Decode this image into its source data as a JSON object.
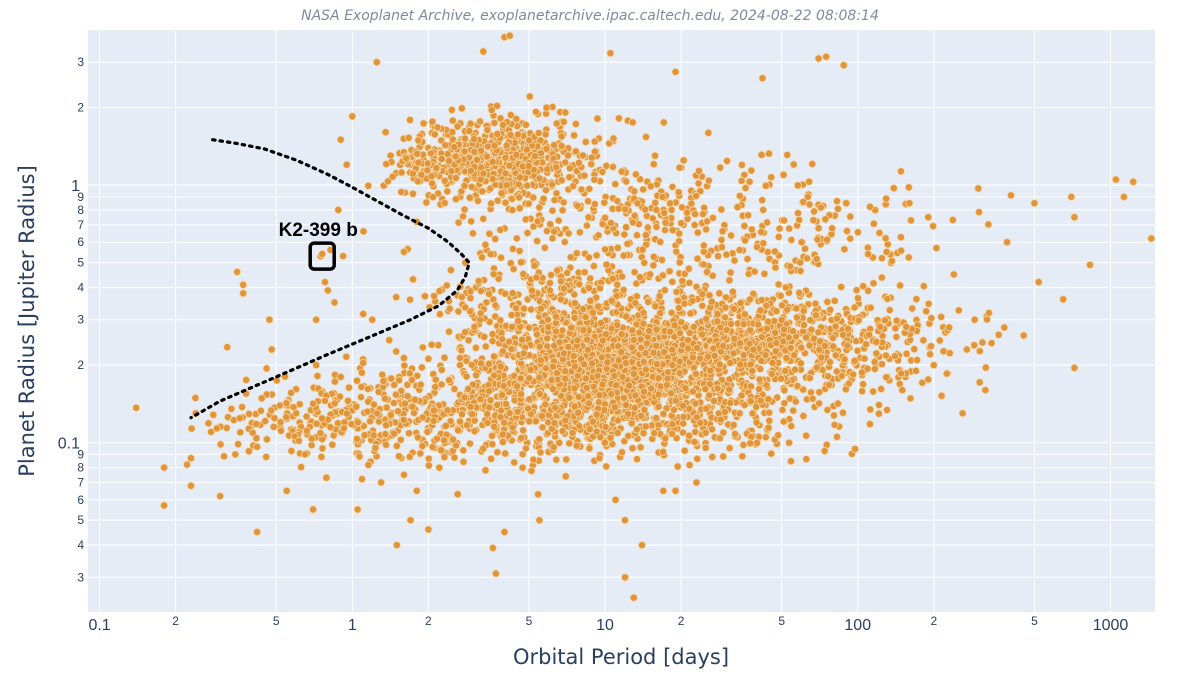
{
  "chart_data": {
    "type": "scatter",
    "title": "NASA Exoplanet Archive, exoplanetarchive.ipac.caltech.edu, 2024-08-22 08:08:14",
    "xlabel": "Orbital Period [days]",
    "ylabel": "Planet Radius [Jupiter Radius]",
    "x_scale": "log",
    "y_scale": "log",
    "xlim": [
      0.09,
      1500
    ],
    "ylim": [
      0.022,
      4.0
    ],
    "grid": true,
    "x_major_ticks": [
      {
        "value": 0.1,
        "label": "0.1"
      },
      {
        "value": 1,
        "label": "1"
      },
      {
        "value": 10,
        "label": "10"
      },
      {
        "value": 100,
        "label": "100"
      },
      {
        "value": 1000,
        "label": "1000"
      }
    ],
    "x_minor_ticks": [
      {
        "value": 0.2,
        "label": "2"
      },
      {
        "value": 0.5,
        "label": "5"
      },
      {
        "value": 2,
        "label": "2"
      },
      {
        "value": 5,
        "label": "5"
      },
      {
        "value": 20,
        "label": "2"
      },
      {
        "value": 50,
        "label": "5"
      },
      {
        "value": 200,
        "label": "2"
      },
      {
        "value": 500,
        "label": "5"
      }
    ],
    "y_major_ticks": [
      {
        "value": 0.1,
        "label": "0.1"
      },
      {
        "value": 1,
        "label": "1"
      }
    ],
    "y_minor_ticks": [
      {
        "value": 0.03,
        "label": "3"
      },
      {
        "value": 0.04,
        "label": "4"
      },
      {
        "value": 0.05,
        "label": "5"
      },
      {
        "value": 0.06,
        "label": "6"
      },
      {
        "value": 0.07,
        "label": "7"
      },
      {
        "value": 0.08,
        "label": "8"
      },
      {
        "value": 0.09,
        "label": "9"
      },
      {
        "value": 0.2,
        "label": "2"
      },
      {
        "value": 0.3,
        "label": "3"
      },
      {
        "value": 0.4,
        "label": "4"
      },
      {
        "value": 0.5,
        "label": "5"
      },
      {
        "value": 0.6,
        "label": "6"
      },
      {
        "value": 0.7,
        "label": "7"
      },
      {
        "value": 0.8,
        "label": "8"
      },
      {
        "value": 0.9,
        "label": "9"
      },
      {
        "value": 2,
        "label": "2"
      },
      {
        "value": 3,
        "label": "3"
      }
    ],
    "point_color": "#e0953a",
    "point_edge_color": "#f7d7a8",
    "background_color": "#e5ecf6",
    "series": [
      {
        "points": [
          [
            0.18,
            0.08
          ],
          [
            0.18,
            0.057
          ],
          [
            0.23,
            0.087
          ],
          [
            0.23,
            0.068
          ],
          [
            0.24,
            0.13
          ],
          [
            0.3,
            0.062
          ],
          [
            0.32,
            0.235
          ],
          [
            0.35,
            0.46
          ],
          [
            0.37,
            0.41
          ],
          [
            0.37,
            0.38
          ],
          [
            0.38,
            0.155
          ],
          [
            0.38,
            0.175
          ],
          [
            0.42,
            0.045
          ],
          [
            0.47,
            0.3
          ],
          [
            0.48,
            0.23
          ],
          [
            0.52,
            0.12
          ],
          [
            0.55,
            0.065
          ],
          [
            0.6,
            0.13
          ],
          [
            0.65,
            0.09
          ],
          [
            0.7,
            0.055
          ],
          [
            0.72,
            0.2
          ],
          [
            0.72,
            0.3
          ],
          [
            0.75,
            0.53
          ],
          [
            0.76,
            0.54
          ],
          [
            0.78,
            0.42
          ],
          [
            0.8,
            0.39
          ],
          [
            0.82,
            0.56
          ],
          [
            0.85,
            0.35
          ],
          [
            0.88,
            0.8
          ],
          [
            0.9,
            1.5
          ],
          [
            0.9,
            0.18
          ],
          [
            0.92,
            0.53
          ],
          [
            0.95,
            1.2
          ],
          [
            1.0,
            1.85
          ],
          [
            1.05,
            0.055
          ],
          [
            1.2,
            0.3
          ],
          [
            1.25,
            3.0
          ],
          [
            1.3,
            0.07
          ],
          [
            1.5,
            0.04
          ],
          [
            1.7,
            0.05
          ],
          [
            1.8,
            0.065
          ],
          [
            2.0,
            0.046
          ],
          [
            3.3,
            3.3
          ],
          [
            4.0,
            3.75
          ],
          [
            4.2,
            3.8
          ],
          [
            10.5,
            3.25
          ],
          [
            19,
            2.75
          ],
          [
            42,
            2.6
          ],
          [
            70,
            3.1
          ],
          [
            75,
            3.15
          ],
          [
            88,
            2.92
          ],
          [
            1050,
            1.05
          ],
          [
            1130,
            0.9
          ],
          [
            1230,
            1.03
          ],
          [
            1450,
            0.62
          ],
          [
            700,
            0.9
          ],
          [
            720,
            0.75
          ],
          [
            830,
            0.49
          ],
          [
            650,
            0.36
          ],
          [
            720,
            0.195
          ],
          [
            500,
            0.85
          ],
          [
            520,
            0.42
          ],
          [
            390,
            0.6
          ],
          [
            380,
            0.28
          ],
          [
            300,
            0.97
          ],
          [
            290,
            0.3
          ],
          [
            270,
            0.23
          ],
          [
            12,
            0.03
          ],
          [
            13,
            0.025
          ],
          [
            11,
            0.06
          ],
          [
            12,
            0.05
          ],
          [
            5.5,
            0.05
          ],
          [
            4.0,
            0.045
          ],
          [
            3.6,
            0.039
          ],
          [
            3.7,
            0.031
          ],
          [
            14,
            0.04
          ],
          [
            19,
            0.065
          ],
          [
            23,
            0.07
          ],
          [
            17,
            0.065
          ],
          [
            150,
            0.16
          ],
          [
            170,
            0.19
          ],
          [
            200,
            0.2
          ],
          [
            230,
            0.28
          ],
          [
            240,
            0.45
          ],
          [
            320,
            0.16
          ],
          [
            260,
            0.13
          ],
          [
            130,
            0.55
          ],
          [
            160,
            0.85
          ],
          [
            190,
            0.75
          ],
          [
            70,
            0.68
          ],
          [
            90,
            0.85
          ],
          [
            60,
            0.6
          ],
          [
            2.8,
            0.5
          ],
          [
            3.0,
            0.65
          ],
          [
            1.4,
            0.25
          ],
          [
            1.6,
            0.55
          ],
          [
            1.8,
            0.72
          ]
        ],
        "clusters": [
          {
            "center": [
              4.2,
              1.25
            ],
            "spread": [
              0.17,
              0.085
            ],
            "count": 520
          },
          {
            "center": [
              2.1,
              1.22
            ],
            "spread": [
              0.1,
              0.07
            ],
            "count": 130
          },
          {
            "center": [
              12,
              0.8
            ],
            "spread": [
              0.3,
              0.12
            ],
            "count": 240
          },
          {
            "center": [
              60,
              0.65
            ],
            "spread": [
              0.35,
              0.12
            ],
            "count": 170
          },
          {
            "center": [
              10,
              0.2
            ],
            "spread": [
              0.26,
              0.12
            ],
            "count": 1500
          },
          {
            "center": [
              45,
              0.24
            ],
            "spread": [
              0.35,
              0.1
            ],
            "count": 900
          },
          {
            "center": [
              3.5,
              0.13
            ],
            "spread": [
              0.32,
              0.1
            ],
            "count": 480
          },
          {
            "center": [
              0.8,
              0.125
            ],
            "spread": [
              0.24,
              0.08
            ],
            "count": 230
          },
          {
            "center": [
              25,
              0.12
            ],
            "spread": [
              0.28,
              0.08
            ],
            "count": 200
          },
          {
            "center": [
              7,
              0.38
            ],
            "spread": [
              0.3,
              0.09
            ],
            "count": 260
          }
        ]
      }
    ],
    "desert_curve": [
      [
        0.28,
        1.5
      ],
      [
        0.35,
        1.45
      ],
      [
        0.45,
        1.38
      ],
      [
        0.6,
        1.25
      ],
      [
        0.8,
        1.1
      ],
      [
        1.0,
        0.98
      ],
      [
        1.3,
        0.85
      ],
      [
        1.6,
        0.76
      ],
      [
        2.0,
        0.68
      ],
      [
        2.4,
        0.6
      ],
      [
        2.7,
        0.54
      ],
      [
        2.9,
        0.5
      ],
      [
        2.8,
        0.44
      ],
      [
        2.6,
        0.39
      ],
      [
        2.2,
        0.34
      ],
      [
        1.7,
        0.3
      ],
      [
        1.2,
        0.26
      ],
      [
        0.8,
        0.22
      ],
      [
        0.5,
        0.18
      ],
      [
        0.3,
        0.145
      ],
      [
        0.23,
        0.125
      ]
    ],
    "annotation": {
      "label": "K2-399 b",
      "x": 0.76,
      "y": 0.53
    }
  }
}
